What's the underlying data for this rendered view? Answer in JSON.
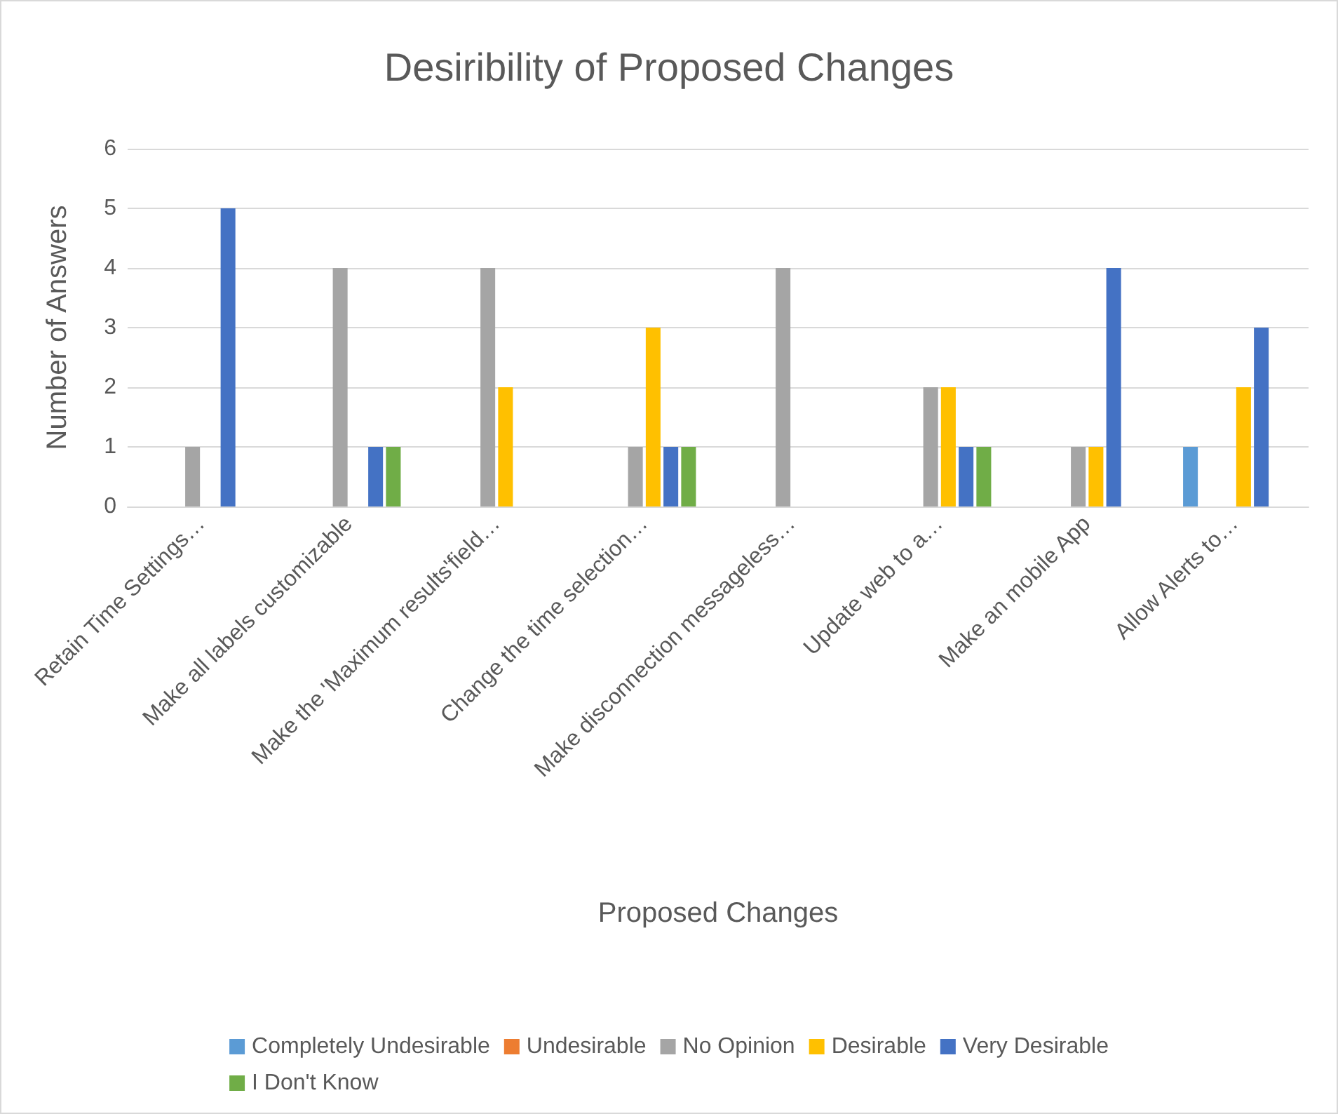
{
  "chart_data": {
    "type": "bar",
    "title": "Desiribility of Proposed Changes",
    "xlabel": "Proposed Changes",
    "ylabel": "Number of Answers",
    "categories": [
      "Retain Time Settings…",
      "Make all labels customizable",
      "Make the 'Maximum results'field…",
      "Change the time selection…",
      "Make disconnection messageless…",
      "Update web to a…",
      "Make an mobile App",
      "Allow Alerts to…"
    ],
    "series": [
      {
        "name": "Completely Undesirable",
        "color": "#5b9bd5",
        "values": [
          0,
          0,
          0,
          0,
          0,
          0,
          0,
          1
        ]
      },
      {
        "name": "Undesirable",
        "color": "#ed7d31",
        "values": [
          0,
          0,
          0,
          0,
          0,
          0,
          0,
          0
        ]
      },
      {
        "name": "No Opinion",
        "color": "#a5a5a5",
        "values": [
          1,
          4,
          4,
          1,
          4,
          2,
          1,
          0
        ]
      },
      {
        "name": "Desirable",
        "color": "#ffc000",
        "values": [
          0,
          0,
          2,
          3,
          0,
          2,
          1,
          2
        ]
      },
      {
        "name": "Very Desirable",
        "color": "#4472c4",
        "values": [
          5,
          1,
          0,
          1,
          0,
          1,
          4,
          3
        ]
      },
      {
        "name": "I Don't Know",
        "color": "#70ad47",
        "values": [
          0,
          1,
          0,
          1,
          0,
          1,
          0,
          0
        ]
      }
    ],
    "ylim": [
      0,
      6
    ],
    "yticks": [
      0,
      1,
      2,
      3,
      4,
      5,
      6
    ],
    "grid": "y",
    "legend": "bottom"
  }
}
